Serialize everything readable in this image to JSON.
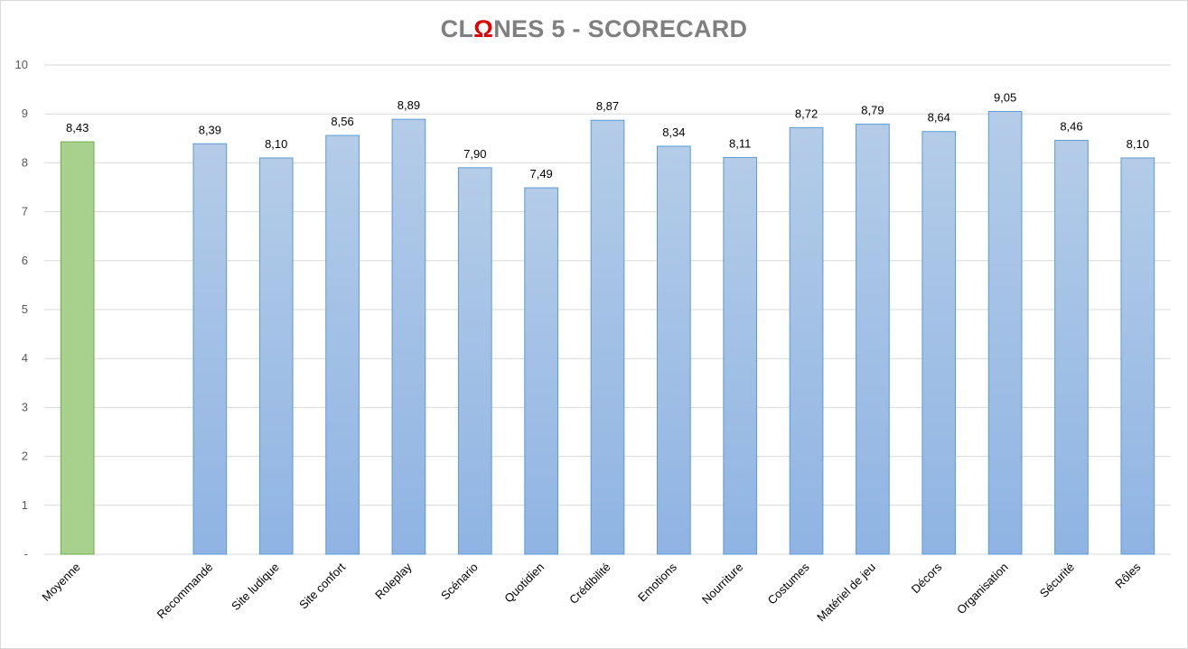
{
  "chart_data": {
    "type": "bar",
    "title_parts": [
      "CL",
      "Ω",
      "NES 5 - SCORECARD"
    ],
    "categories": [
      "Moyenne",
      "",
      "Recommandé",
      "Site ludique",
      "Site confort",
      "Roleplay",
      "Scénario",
      "Quotidien",
      "Crédibilité",
      "Emotions",
      "Nourriture",
      "Costumes",
      "Matériel de jeu",
      "Décors",
      "Organisation",
      "Sécurité",
      "Rôles"
    ],
    "values": [
      8.43,
      null,
      8.39,
      8.1,
      8.56,
      8.89,
      7.9,
      7.49,
      8.87,
      8.34,
      8.11,
      8.72,
      8.79,
      8.64,
      9.05,
      8.46,
      8.1
    ],
    "value_labels": [
      "8,43",
      "",
      "8,39",
      "8,10",
      "8,56",
      "8,89",
      "7,90",
      "7,49",
      "8,87",
      "8,34",
      "8,11",
      "8,72",
      "8,79",
      "8,64",
      "9,05",
      "8,46",
      "8,10"
    ],
    "highlight_index": 0,
    "colors": {
      "highlight_fill": "#a9d18e",
      "highlight_stroke": "#70ad47",
      "bar_top": "#b4cce8",
      "bar_bottom": "#8fb4e3",
      "bar_stroke": "#5b9bd5",
      "grid": "#d9d9d9",
      "title": "#7f7f7f",
      "title_accent": "#e00000"
    },
    "ylim": [
      0,
      10
    ],
    "yticks": [
      "-",
      "1",
      "2",
      "3",
      "4",
      "5",
      "6",
      "7",
      "8",
      "9",
      "10"
    ],
    "xlabel": "",
    "ylabel": "",
    "grid": true,
    "legend": "none"
  }
}
